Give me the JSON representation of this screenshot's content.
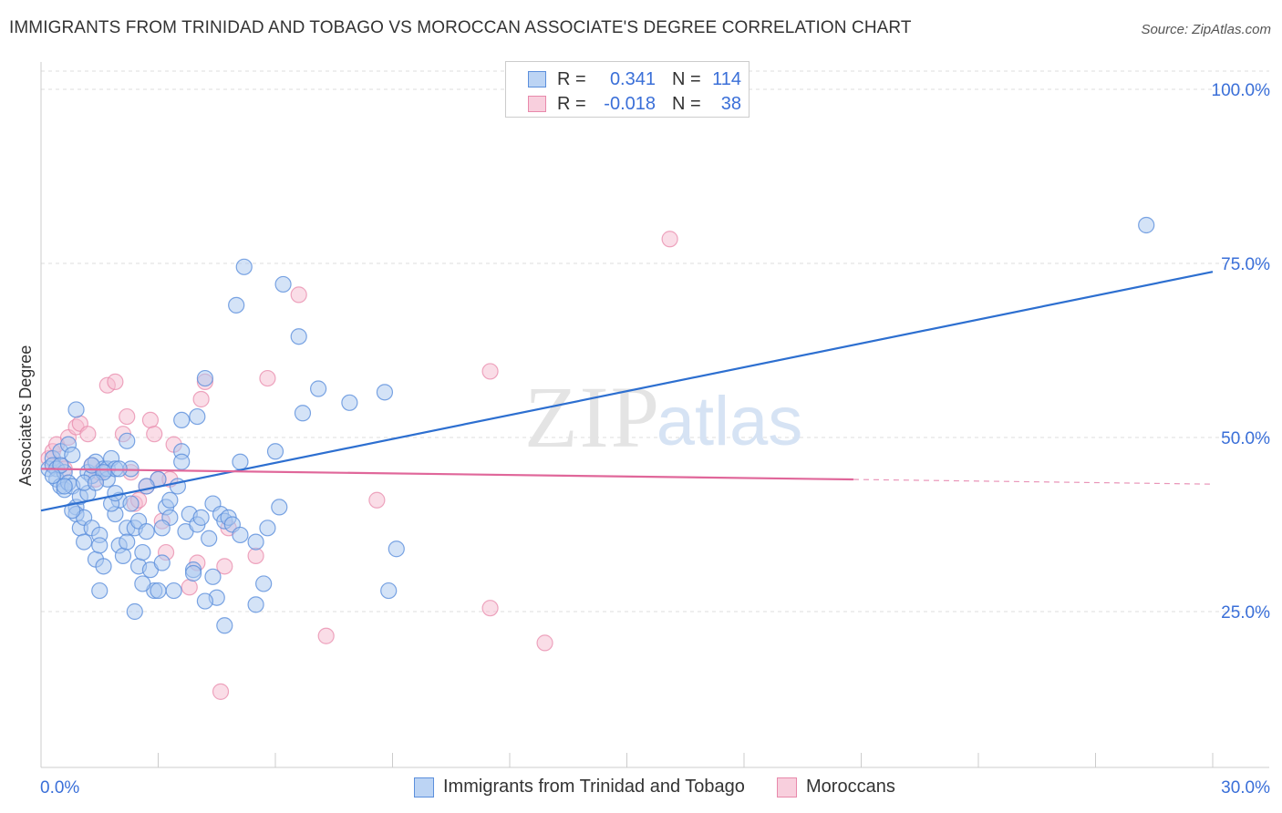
{
  "header": {
    "title": "IMMIGRANTS FROM TRINIDAD AND TOBAGO VS MOROCCAN ASSOCIATE'S DEGREE CORRELATION CHART",
    "source": "Source: ZipAtlas.com"
  },
  "watermark": {
    "part1": "ZIP",
    "part2": "atlas"
  },
  "legend": {
    "rows": [
      {
        "r_label": "R =",
        "r_value": "0.341",
        "n_label": "N =",
        "n_value": "114"
      },
      {
        "r_label": "R =",
        "r_value": "-0.018",
        "n_label": "N =",
        "n_value": "38"
      }
    ]
  },
  "bottom_legend": {
    "series1": "Immigrants from Trinidad and Tobago",
    "series2": "Moroccans"
  },
  "colors": {
    "blue_fill": "#a9c8f0",
    "blue_stroke": "#5b8fdc",
    "blue_line": "#2d6fd0",
    "pink_fill": "#f6bcd0",
    "pink_stroke": "#e889ab",
    "pink_line": "#e0679a",
    "axis_text": "#3a6fd8",
    "grid": "#dddddd"
  },
  "chart_data": {
    "type": "scatter",
    "xlabel": "",
    "ylabel": "Associate's Degree",
    "xlim": [
      0,
      30
    ],
    "ylim": [
      0,
      100
    ],
    "x_tick_labels": [
      {
        "value": 0,
        "label": "0.0%"
      },
      {
        "value": 30,
        "label": "30.0%"
      }
    ],
    "y_tick_labels": [
      {
        "value": 25,
        "label": "25.0%"
      },
      {
        "value": 50,
        "label": "50.0%"
      },
      {
        "value": 75,
        "label": "75.0%"
      },
      {
        "value": 100,
        "label": "100.0%"
      }
    ],
    "grid": true,
    "legend_placement": "top-center",
    "series": [
      {
        "name": "Immigrants from Trinidad and Tobago",
        "color": "blue",
        "trend": {
          "x": [
            0,
            30
          ],
          "y": [
            39.5,
            73.8
          ],
          "solid_until": 30
        },
        "points": [
          [
            0.2,
            45.5
          ],
          [
            0.3,
            47
          ],
          [
            0.3,
            46
          ],
          [
            0.4,
            45.5
          ],
          [
            0.4,
            44
          ],
          [
            0.5,
            48
          ],
          [
            0.5,
            43
          ],
          [
            0.6,
            42.5
          ],
          [
            0.6,
            45
          ],
          [
            0.7,
            43.5
          ],
          [
            0.7,
            49
          ],
          [
            0.8,
            47.5
          ],
          [
            0.8,
            43
          ],
          [
            0.9,
            40
          ],
          [
            0.9,
            39
          ],
          [
            1.0,
            41.5
          ],
          [
            1.0,
            37
          ],
          [
            1.1,
            38.5
          ],
          [
            1.1,
            35
          ],
          [
            1.2,
            45
          ],
          [
            1.2,
            42
          ],
          [
            1.3,
            37
          ],
          [
            1.3,
            44.5
          ],
          [
            1.4,
            32.5
          ],
          [
            1.4,
            46.5
          ],
          [
            1.5,
            36
          ],
          [
            1.5,
            34.5
          ],
          [
            1.6,
            45.5
          ],
          [
            1.6,
            31.5
          ],
          [
            1.7,
            44
          ],
          [
            1.7,
            45.5
          ],
          [
            1.8,
            47
          ],
          [
            1.9,
            45.5
          ],
          [
            1.9,
            39
          ],
          [
            2.0,
            41
          ],
          [
            2.0,
            34.5
          ],
          [
            2.1,
            33
          ],
          [
            2.2,
            37
          ],
          [
            2.2,
            49.5
          ],
          [
            2.3,
            45.5
          ],
          [
            2.3,
            40.5
          ],
          [
            2.4,
            37
          ],
          [
            2.5,
            38
          ],
          [
            2.5,
            31.5
          ],
          [
            2.6,
            33.5
          ],
          [
            2.7,
            36.5
          ],
          [
            2.8,
            31
          ],
          [
            2.9,
            28
          ],
          [
            3.0,
            44
          ],
          [
            3.1,
            32
          ],
          [
            3.2,
            40
          ],
          [
            3.3,
            38.5
          ],
          [
            3.4,
            28
          ],
          [
            3.5,
            43
          ],
          [
            3.6,
            48
          ],
          [
            3.6,
            52.5
          ],
          [
            3.7,
            36.5
          ],
          [
            3.8,
            39
          ],
          [
            3.9,
            31
          ],
          [
            4.0,
            53
          ],
          [
            4.0,
            37.5
          ],
          [
            4.1,
            38.5
          ],
          [
            4.2,
            58.5
          ],
          [
            4.3,
            35.5
          ],
          [
            4.4,
            40.5
          ],
          [
            4.4,
            30
          ],
          [
            4.5,
            27
          ],
          [
            4.6,
            39
          ],
          [
            4.7,
            38
          ],
          [
            4.7,
            23
          ],
          [
            4.8,
            38.5
          ],
          [
            4.9,
            37.5
          ],
          [
            5.0,
            69
          ],
          [
            5.1,
            46.5
          ],
          [
            5.1,
            36
          ],
          [
            5.2,
            74.5
          ],
          [
            5.5,
            26
          ],
          [
            5.5,
            35
          ],
          [
            5.7,
            29
          ],
          [
            5.8,
            37
          ],
          [
            6.0,
            48
          ],
          [
            6.1,
            40
          ],
          [
            6.2,
            72
          ],
          [
            6.6,
            64.5
          ],
          [
            6.7,
            53.5
          ],
          [
            7.1,
            57
          ],
          [
            7.9,
            55
          ],
          [
            8.8,
            56.5
          ],
          [
            8.9,
            28
          ],
          [
            9.1,
            34
          ],
          [
            0.5,
            46
          ],
          [
            0.6,
            43
          ],
          [
            0.8,
            39.5
          ],
          [
            1.1,
            43.5
          ],
          [
            1.3,
            46
          ],
          [
            1.6,
            45
          ],
          [
            1.8,
            40.5
          ],
          [
            2.0,
            45.5
          ],
          [
            2.2,
            35
          ],
          [
            2.6,
            29
          ],
          [
            3.0,
            28
          ],
          [
            3.3,
            41
          ],
          [
            3.6,
            46.5
          ],
          [
            3.9,
            30.5
          ],
          [
            4.2,
            26.5
          ],
          [
            2.4,
            25
          ],
          [
            0.9,
            54
          ],
          [
            1.5,
            28
          ],
          [
            3.1,
            37
          ],
          [
            28.3,
            80.5
          ],
          [
            1.4,
            43.5
          ],
          [
            2.7,
            43
          ],
          [
            0.3,
            44.5
          ],
          [
            1.9,
            42
          ]
        ]
      },
      {
        "name": "Moroccans",
        "color": "pink",
        "trend": {
          "x": [
            0,
            30
          ],
          "y": [
            45.5,
            43.3
          ],
          "solid_until": 20.8
        },
        "points": [
          [
            0.2,
            47
          ],
          [
            0.3,
            48
          ],
          [
            0.4,
            49
          ],
          [
            0.5,
            46
          ],
          [
            0.6,
            45.5
          ],
          [
            0.7,
            50
          ],
          [
            0.9,
            51.5
          ],
          [
            1.0,
            52
          ],
          [
            1.2,
            50.5
          ],
          [
            1.3,
            46
          ],
          [
            1.4,
            44
          ],
          [
            1.5,
            45
          ],
          [
            1.7,
            57.5
          ],
          [
            1.9,
            58
          ],
          [
            2.1,
            50.5
          ],
          [
            2.2,
            53
          ],
          [
            2.3,
            45
          ],
          [
            2.4,
            40.5
          ],
          [
            2.5,
            41
          ],
          [
            2.7,
            43
          ],
          [
            2.8,
            52.5
          ],
          [
            2.9,
            50.5
          ],
          [
            3.0,
            44
          ],
          [
            3.1,
            38
          ],
          [
            3.2,
            33.5
          ],
          [
            3.3,
            44
          ],
          [
            3.4,
            49
          ],
          [
            3.8,
            28.5
          ],
          [
            4.0,
            32
          ],
          [
            4.1,
            55.5
          ],
          [
            4.2,
            58
          ],
          [
            4.6,
            13.5
          ],
          [
            4.8,
            37
          ],
          [
            5.5,
            33
          ],
          [
            6.6,
            70.5
          ],
          [
            5.8,
            58.5
          ],
          [
            7.3,
            21.5
          ],
          [
            8.6,
            41
          ]
        ]
      }
    ],
    "extra_pink_points": [
      [
        11.5,
        59.5
      ],
      [
        11.5,
        25.5
      ],
      [
        12.9,
        20.5
      ],
      [
        16.1,
        78.5
      ],
      [
        4.7,
        31.5
      ]
    ]
  }
}
